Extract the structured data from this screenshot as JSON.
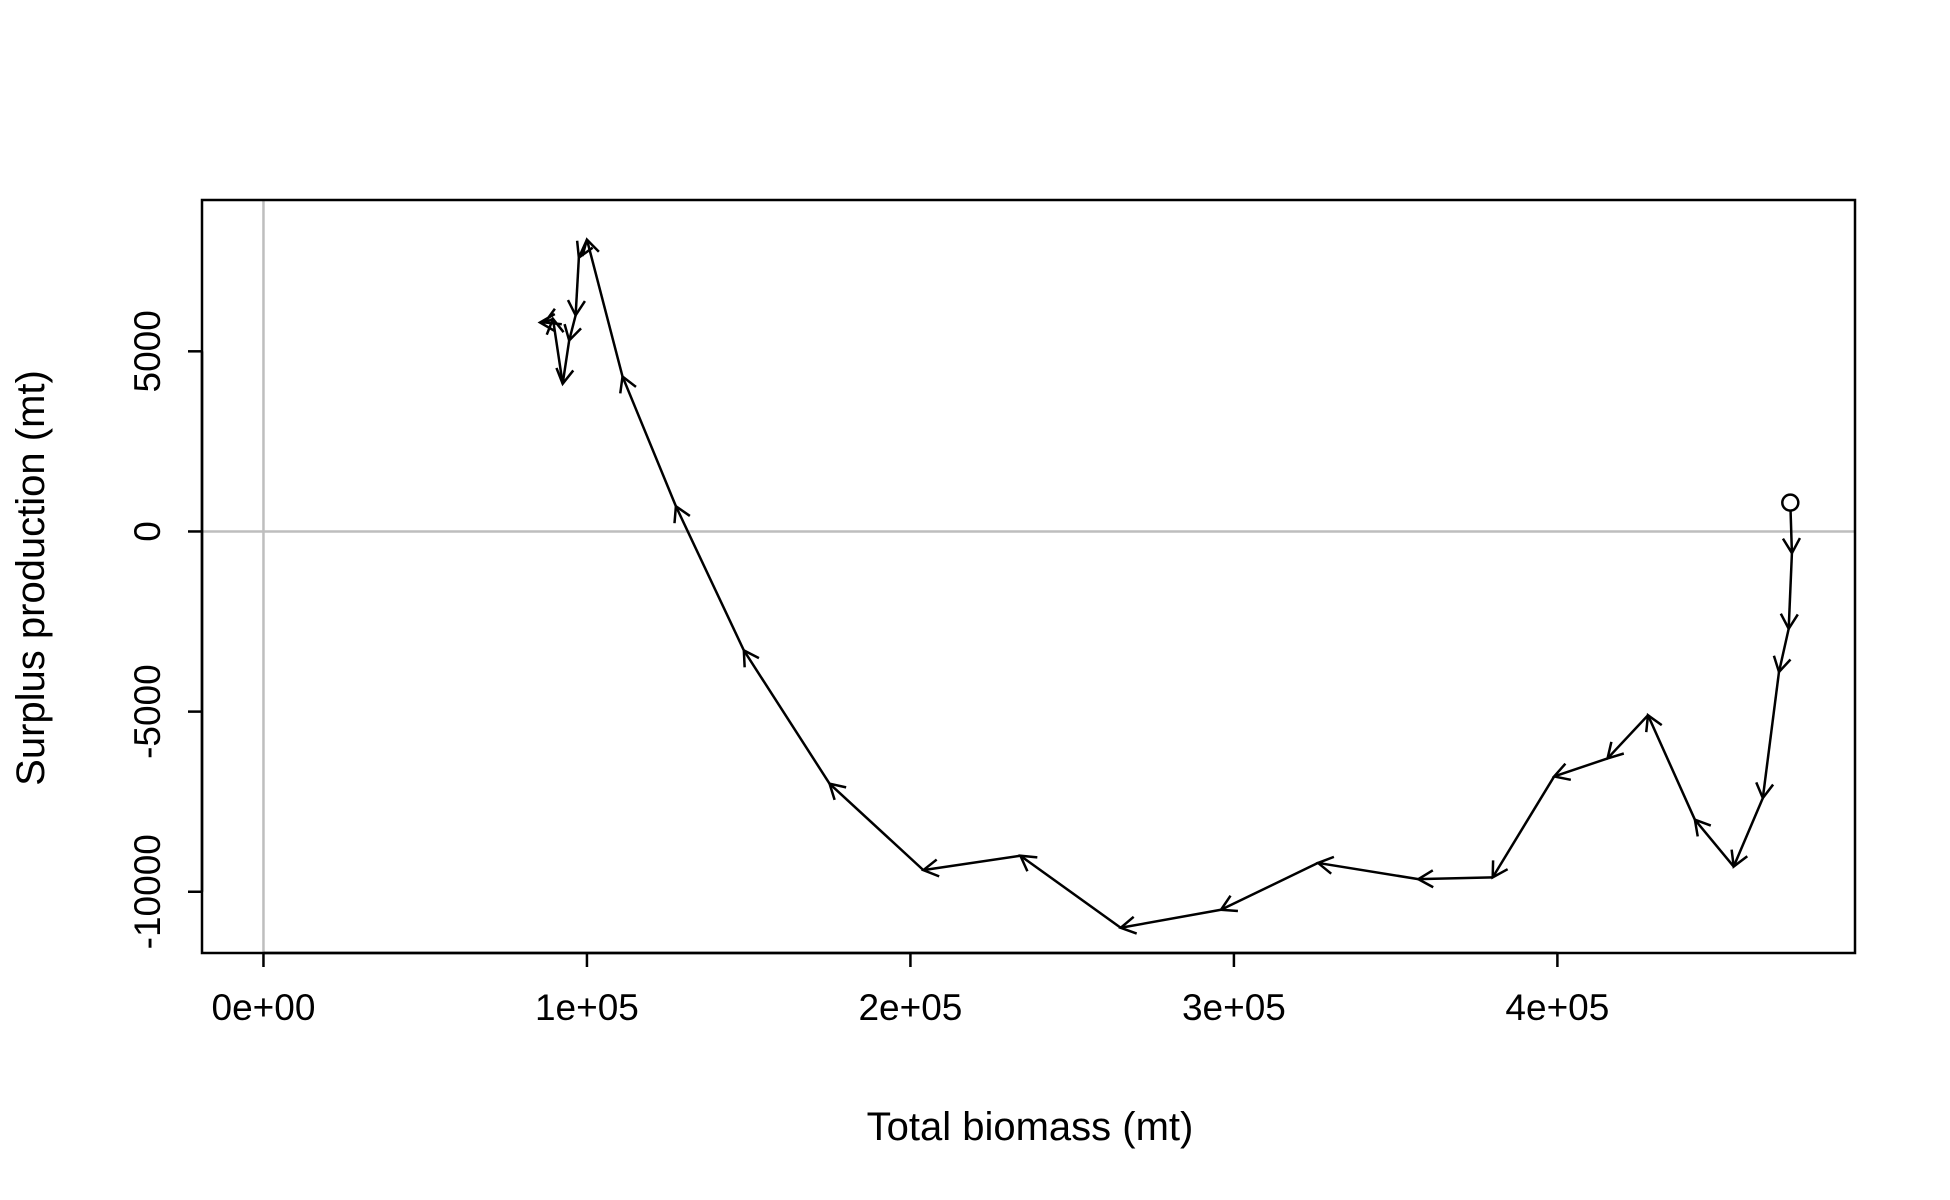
{
  "chart_data": {
    "type": "line",
    "title": "",
    "xlabel": "Total biomass (mt)",
    "ylabel": "Surplus production (mt)",
    "xlim": [
      -19000,
      492000
    ],
    "ylim": [
      -11700,
      9200
    ],
    "x_ticks": [
      {
        "value": 0,
        "label": "0e+00"
      },
      {
        "value": 100000,
        "label": "1e+05"
      },
      {
        "value": 200000,
        "label": "2e+05"
      },
      {
        "value": 300000,
        "label": "3e+05"
      },
      {
        "value": 400000,
        "label": "4e+05"
      }
    ],
    "y_ticks": [
      {
        "value": -10000,
        "label": "-10000"
      },
      {
        "value": -5000,
        "label": "-5000"
      },
      {
        "value": 0,
        "label": "0"
      },
      {
        "value": 5000,
        "label": "5000"
      }
    ],
    "reference_lines": {
      "x": 0,
      "y": 0,
      "color": "#bebebe"
    },
    "grid": false,
    "legend": null,
    "start_marker": "open-circle",
    "arrows": true,
    "line_color": "#000000",
    "series": [
      {
        "x": [
          472000,
          472500,
          471500,
          468500,
          463500,
          454500,
          442500,
          428000,
          415500,
          399000,
          380000,
          357000,
          326000,
          296000,
          265000,
          234000,
          204000,
          175000,
          148500,
          127500,
          111000,
          100000,
          97500,
          96500,
          94500,
          92500,
          89500,
          87000,
          85500
        ],
        "y": [
          800,
          -600,
          -2700,
          -3900,
          -7400,
          -9300,
          -8000,
          -5100,
          -6300,
          -6800,
          -9600,
          -9650,
          -9200,
          -10500,
          -11000,
          -9000,
          -9400,
          -7000,
          -3300,
          700,
          4300,
          8100,
          7600,
          6000,
          5300,
          4100,
          5900,
          5800,
          5800
        ]
      }
    ]
  }
}
